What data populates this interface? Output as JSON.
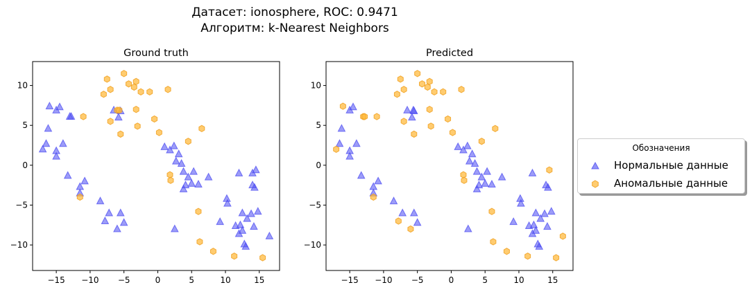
{
  "title_line1": "Датасет: ionosphere, ROC: 0.9471",
  "title_line2": "Алгоритм: k-Nearest Neighbors",
  "legend": {
    "title": "Обозначения",
    "normal_label": "Нормальные данные",
    "anomaly_label": "Аномальные данные"
  },
  "colors": {
    "normal": "#4b4bf2",
    "anomaly": "#ffb733"
  },
  "chart_data": [
    {
      "type": "scatter",
      "title": "Ground truth",
      "xlim": [
        -18.5,
        18
      ],
      "ylim": [
        -13.2,
        13
      ],
      "xticks": [
        -15,
        -10,
        -5,
        0,
        5,
        10,
        15
      ],
      "yticks": [
        -10,
        -5,
        0,
        5,
        10
      ],
      "series": [
        {
          "name": "Нормальные данные",
          "marker": "triangle",
          "color": "#4b4bf2",
          "points": [
            [
              -16.0,
              7.4
            ],
            [
              -15.0,
              6.9
            ],
            [
              -14.5,
              7.3
            ],
            [
              -16.2,
              4.6
            ],
            [
              -13.0,
              6.1
            ],
            [
              -12.8,
              6.1
            ],
            [
              -16.5,
              2.7
            ],
            [
              -17.0,
              2.0
            ],
            [
              -15.0,
              1.8
            ],
            [
              -15.0,
              1.1
            ],
            [
              -14.0,
              2.7
            ],
            [
              -13.3,
              -1.3
            ],
            [
              -11.5,
              -2.7
            ],
            [
              -10.8,
              -2.0
            ],
            [
              -11.5,
              -3.5
            ],
            [
              -8.5,
              -4.5
            ],
            [
              -7.8,
              -7.0
            ],
            [
              -7.2,
              -6.0
            ],
            [
              -6.0,
              -8.0
            ],
            [
              -5.5,
              -6.0
            ],
            [
              -5.0,
              -7.2
            ],
            [
              -6.5,
              6.9
            ],
            [
              -5.5,
              6.8
            ],
            [
              -5.8,
              6.0
            ],
            [
              1.0,
              2.3
            ],
            [
              1.8,
              1.9
            ],
            [
              2.4,
              2.4
            ],
            [
              2.7,
              0.5
            ],
            [
              3.1,
              1.4
            ],
            [
              3.5,
              0.2
            ],
            [
              3.8,
              -0.8
            ],
            [
              4.5,
              -1.5
            ],
            [
              5.3,
              -0.8
            ],
            [
              4.1,
              -2.5
            ],
            [
              3.8,
              -3.0
            ],
            [
              5.0,
              -2.3
            ],
            [
              6.0,
              -2.4
            ],
            [
              7.5,
              -1.5
            ],
            [
              2.5,
              -8.0
            ],
            [
              10.2,
              -4.2
            ],
            [
              10.3,
              -4.8
            ],
            [
              9.2,
              -7.1
            ],
            [
              12.0,
              -1.0
            ],
            [
              14.0,
              -2.5
            ],
            [
              14.5,
              -0.6
            ],
            [
              14.0,
              -1.0
            ],
            [
              14.3,
              -2.8
            ],
            [
              12.5,
              -6.0
            ],
            [
              13.2,
              -6.7
            ],
            [
              13.8,
              -6.1
            ],
            [
              14.8,
              -5.8
            ],
            [
              11.5,
              -7.6
            ],
            [
              12.2,
              -7.5
            ],
            [
              12.5,
              -8.2
            ],
            [
              12.0,
              -8.6
            ],
            [
              12.8,
              -9.9
            ],
            [
              13.0,
              -10.2
            ],
            [
              14.2,
              -7.7
            ],
            [
              16.5,
              -8.9
            ]
          ]
        },
        {
          "name": "Аномальные данные",
          "marker": "hexagon",
          "color": "#ffb733",
          "points": [
            [
              -5.0,
              11.5
            ],
            [
              -7.5,
              10.8
            ],
            [
              -8.0,
              8.9
            ],
            [
              -7.0,
              9.5
            ],
            [
              -4.3,
              10.2
            ],
            [
              -3.5,
              9.8
            ],
            [
              -3.2,
              10.5
            ],
            [
              -2.5,
              9.2
            ],
            [
              -1.2,
              9.2
            ],
            [
              1.5,
              9.5
            ],
            [
              -6.0,
              6.9
            ],
            [
              -5.7,
              6.9
            ],
            [
              -3.2,
              7.0
            ],
            [
              -7.0,
              5.5
            ],
            [
              -5.5,
              3.9
            ],
            [
              -3.0,
              4.9
            ],
            [
              -11.0,
              6.1
            ],
            [
              -0.5,
              5.8
            ],
            [
              0.2,
              4.1
            ],
            [
              4.5,
              3.0
            ],
            [
              6.5,
              4.6
            ],
            [
              1.8,
              -1.2
            ],
            [
              1.9,
              -1.9
            ],
            [
              -11.5,
              -4.0
            ],
            [
              6.0,
              -5.8
            ],
            [
              6.2,
              -9.6
            ],
            [
              8.2,
              -10.8
            ],
            [
              11.3,
              -11.4
            ],
            [
              15.5,
              -11.6
            ]
          ]
        }
      ]
    },
    {
      "type": "scatter",
      "title": "Predicted",
      "xlim": [
        -18.5,
        18
      ],
      "ylim": [
        -13.2,
        13
      ],
      "xticks": [
        -15,
        -10,
        -5,
        0,
        5,
        10,
        15
      ],
      "yticks": [
        -10,
        -5,
        0,
        5,
        10
      ],
      "series": [
        {
          "name": "Нормальные данные",
          "marker": "triangle",
          "color": "#4b4bf2",
          "points": [
            [
              -15.0,
              6.9
            ],
            [
              -14.5,
              7.3
            ],
            [
              -16.2,
              4.6
            ],
            [
              -16.5,
              2.7
            ],
            [
              -15.0,
              1.8
            ],
            [
              -15.0,
              1.1
            ],
            [
              -14.0,
              2.7
            ],
            [
              -13.3,
              -1.3
            ],
            [
              -11.5,
              -2.7
            ],
            [
              -10.8,
              -2.0
            ],
            [
              -11.5,
              -3.5
            ],
            [
              -8.5,
              -4.5
            ],
            [
              -7.2,
              -6.0
            ],
            [
              -5.5,
              -6.0
            ],
            [
              -5.0,
              -7.2
            ],
            [
              -6.5,
              6.9
            ],
            [
              -5.5,
              6.8
            ],
            [
              -5.8,
              6.0
            ],
            [
              -5.6,
              6.9
            ],
            [
              1.0,
              2.3
            ],
            [
              1.8,
              1.9
            ],
            [
              2.4,
              2.4
            ],
            [
              2.7,
              0.5
            ],
            [
              3.1,
              1.4
            ],
            [
              3.5,
              0.2
            ],
            [
              3.8,
              -0.8
            ],
            [
              4.5,
              -1.5
            ],
            [
              5.3,
              -0.8
            ],
            [
              4.1,
              -2.5
            ],
            [
              3.8,
              -3.0
            ],
            [
              5.0,
              -2.3
            ],
            [
              6.0,
              -2.4
            ],
            [
              7.5,
              -1.5
            ],
            [
              2.5,
              -8.0
            ],
            [
              10.2,
              -4.2
            ],
            [
              10.3,
              -4.8
            ],
            [
              9.2,
              -7.1
            ],
            [
              12.0,
              -1.0
            ],
            [
              14.0,
              -2.5
            ],
            [
              14.3,
              -2.8
            ],
            [
              12.5,
              -6.0
            ],
            [
              13.2,
              -6.7
            ],
            [
              13.8,
              -6.1
            ],
            [
              14.8,
              -5.8
            ],
            [
              11.5,
              -7.6
            ],
            [
              12.2,
              -7.5
            ],
            [
              12.5,
              -8.2
            ],
            [
              12.0,
              -8.6
            ],
            [
              12.8,
              -9.9
            ],
            [
              13.0,
              -10.2
            ],
            [
              14.2,
              -7.7
            ]
          ]
        },
        {
          "name": "Аномальные данные",
          "marker": "hexagon",
          "color": "#ffb733",
          "points": [
            [
              -5.0,
              11.5
            ],
            [
              -7.5,
              10.8
            ],
            [
              -8.0,
              8.9
            ],
            [
              -7.0,
              9.5
            ],
            [
              -4.3,
              10.2
            ],
            [
              -3.5,
              9.8
            ],
            [
              -3.2,
              10.5
            ],
            [
              -2.5,
              9.2
            ],
            [
              -1.2,
              9.2
            ],
            [
              1.5,
              9.5
            ],
            [
              -3.2,
              7.0
            ],
            [
              -7.0,
              5.5
            ],
            [
              -5.5,
              3.9
            ],
            [
              -3.0,
              4.9
            ],
            [
              -11.0,
              6.1
            ],
            [
              -16.0,
              7.4
            ],
            [
              -13.0,
              6.1
            ],
            [
              -12.8,
              6.1
            ],
            [
              -17.0,
              2.0
            ],
            [
              -0.5,
              5.8
            ],
            [
              0.2,
              4.1
            ],
            [
              4.5,
              3.0
            ],
            [
              6.5,
              4.6
            ],
            [
              1.8,
              -1.2
            ],
            [
              1.9,
              -1.9
            ],
            [
              -11.5,
              -4.0
            ],
            [
              -7.8,
              -7.0
            ],
            [
              -6.0,
              -8.0
            ],
            [
              6.0,
              -5.8
            ],
            [
              6.2,
              -9.6
            ],
            [
              8.2,
              -10.8
            ],
            [
              11.3,
              -11.4
            ],
            [
              15.5,
              -11.6
            ],
            [
              14.5,
              -0.6
            ],
            [
              16.5,
              -8.9
            ]
          ]
        }
      ]
    }
  ]
}
